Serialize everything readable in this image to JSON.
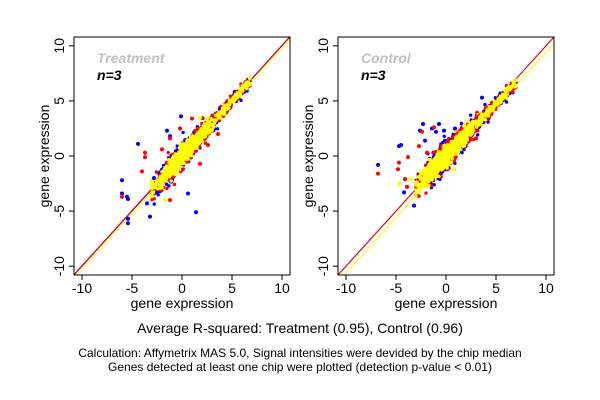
{
  "chart_data": [
    {
      "type": "scatter",
      "title": "Treatment",
      "subtitle": "n=3",
      "xlabel": "gene expression",
      "ylabel": "gene expression",
      "xlim": [
        -10.8,
        10.8
      ],
      "ylim": [
        -10.8,
        10.8
      ],
      "xticks": [
        -10,
        -5,
        0,
        5,
        10
      ],
      "yticks": [
        -10,
        -5,
        0,
        5,
        10
      ],
      "grid": false,
      "series_colors": {
        "blue": "#0000ff",
        "red": "#ff0000",
        "yellow": "#ffff00"
      },
      "fit_lines": [
        {
          "color": "#0000ff",
          "slope": 1.0,
          "intercept": 0.0
        },
        {
          "color": "#ff0000",
          "slope": 1.0,
          "intercept": 0.05
        },
        {
          "color": "#ffff00",
          "slope": 1.0,
          "intercept": -0.25
        }
      ],
      "core_cloud": {
        "x_range": [
          -3,
          6.8
        ],
        "slope": 1.0,
        "spread": 0.55
      },
      "outliers": [
        {
          "c": "blue",
          "x": -0.1,
          "y": 3.6
        },
        {
          "c": "blue",
          "x": -1.5,
          "y": 2.3
        },
        {
          "c": "blue",
          "x": -4.4,
          "y": 1.1
        },
        {
          "c": "blue",
          "x": -6.0,
          "y": -2.2
        },
        {
          "c": "blue",
          "x": -6.0,
          "y": -3.4
        },
        {
          "c": "blue",
          "x": -5.5,
          "y": -3.7
        },
        {
          "c": "blue",
          "x": -5.4,
          "y": -3.9
        },
        {
          "c": "blue",
          "x": -5.4,
          "y": -5.7
        },
        {
          "c": "blue",
          "x": -5.4,
          "y": -6.1
        },
        {
          "c": "blue",
          "x": -3.5,
          "y": -4.3
        },
        {
          "c": "blue",
          "x": -3.2,
          "y": -5.5
        },
        {
          "c": "blue",
          "x": 0.6,
          "y": -3.4
        },
        {
          "c": "blue",
          "x": 1.4,
          "y": -5.1
        },
        {
          "c": "blue",
          "x": -1.2,
          "y": 1.8
        },
        {
          "c": "blue",
          "x": -2.8,
          "y": -2.0
        },
        {
          "c": "blue",
          "x": -2.5,
          "y": -3.3
        },
        {
          "c": "red",
          "x": 1.0,
          "y": 3.4
        },
        {
          "c": "red",
          "x": -0.2,
          "y": 2.5
        },
        {
          "c": "red",
          "x": -3.7,
          "y": 0.3
        },
        {
          "c": "red",
          "x": -3.7,
          "y": -0.1
        },
        {
          "c": "red",
          "x": -4.0,
          "y": -1.4
        },
        {
          "c": "red",
          "x": -6.0,
          "y": -3.7
        },
        {
          "c": "red",
          "x": -1.2,
          "y": -4.0
        },
        {
          "c": "red",
          "x": -1.2,
          "y": 1.6
        },
        {
          "c": "red",
          "x": 1.8,
          "y": -0.7
        },
        {
          "c": "red",
          "x": 3.6,
          "y": 2.0
        },
        {
          "c": "red",
          "x": 2.6,
          "y": 1.0
        },
        {
          "c": "red",
          "x": -2.0,
          "y": 0.6
        },
        {
          "c": "yellow",
          "x": -1.7,
          "y": -4.0
        },
        {
          "c": "yellow",
          "x": 1.8,
          "y": 3.5
        }
      ]
    },
    {
      "type": "scatter",
      "title": "Control",
      "subtitle": "n=3",
      "xlabel": "gene expression",
      "ylabel": "gene expression",
      "xlim": [
        -10.8,
        10.8
      ],
      "ylim": [
        -10.8,
        10.8
      ],
      "xticks": [
        -10,
        -5,
        0,
        5,
        10
      ],
      "yticks": [
        -10,
        -5,
        0,
        5,
        10
      ],
      "grid": false,
      "series_colors": {
        "blue": "#0000ff",
        "red": "#ff0000",
        "yellow": "#ffff00"
      },
      "fit_lines": [
        {
          "color": "#0000ff",
          "slope": 1.0,
          "intercept": 0.0
        },
        {
          "color": "#ff0000",
          "slope": 1.0,
          "intercept": 0.0
        },
        {
          "color": "#ffff00",
          "slope": 1.0,
          "intercept": -0.6
        }
      ],
      "core_cloud": {
        "x_range": [
          -3,
          7
        ],
        "slope": 0.95,
        "spread": 0.6
      },
      "outliers": [
        {
          "c": "blue",
          "x": -6.8,
          "y": -0.8
        },
        {
          "c": "blue",
          "x": -4.7,
          "y": 0.9
        },
        {
          "c": "blue",
          "x": -4.5,
          "y": 1.0
        },
        {
          "c": "blue",
          "x": -2.3,
          "y": 2.9
        },
        {
          "c": "blue",
          "x": -2.6,
          "y": 2.3
        },
        {
          "c": "blue",
          "x": -1.4,
          "y": 2.5
        },
        {
          "c": "blue",
          "x": -0.7,
          "y": 2.9
        },
        {
          "c": "blue",
          "x": -0.2,
          "y": 2.3
        },
        {
          "c": "blue",
          "x": 3.6,
          "y": 5.3
        },
        {
          "c": "blue",
          "x": -4.2,
          "y": -3.3
        },
        {
          "c": "blue",
          "x": -3.2,
          "y": -4.5
        },
        {
          "c": "blue",
          "x": -2.1,
          "y": 1.4
        },
        {
          "c": "blue",
          "x": 0.9,
          "y": 2.5
        },
        {
          "c": "blue",
          "x": -1.0,
          "y": 2.2
        },
        {
          "c": "red",
          "x": -6.8,
          "y": -1.6
        },
        {
          "c": "red",
          "x": -4.7,
          "y": -0.6
        },
        {
          "c": "red",
          "x": -4.8,
          "y": -1.2
        },
        {
          "c": "red",
          "x": -3.8,
          "y": -0.1
        },
        {
          "c": "red",
          "x": -4.1,
          "y": -2.1
        },
        {
          "c": "red",
          "x": -3.9,
          "y": -2.8
        },
        {
          "c": "red",
          "x": -2.7,
          "y": 0.9
        },
        {
          "c": "red",
          "x": -1.2,
          "y": 2.6
        },
        {
          "c": "red",
          "x": -2.4,
          "y": 2.2
        },
        {
          "c": "red",
          "x": -1.9,
          "y": 0.3
        },
        {
          "c": "red",
          "x": 3.0,
          "y": 1.6
        },
        {
          "c": "yellow",
          "x": -4.7,
          "y": -2.5
        },
        {
          "c": "yellow",
          "x": -3.5,
          "y": -2.1
        },
        {
          "c": "yellow",
          "x": 0.8,
          "y": -1.2
        }
      ]
    }
  ],
  "summary": "Average R-squared: Treatment (0.95), Control (0.96)",
  "notes": [
    "Calculation: Affymetrix MAS 5.0, Signal intensities were devided by the chip median",
    "Genes detected at least one chip were plotted (detection p-value < 0.01)"
  ],
  "colors": {
    "title_gray": "#c0c0c0"
  }
}
